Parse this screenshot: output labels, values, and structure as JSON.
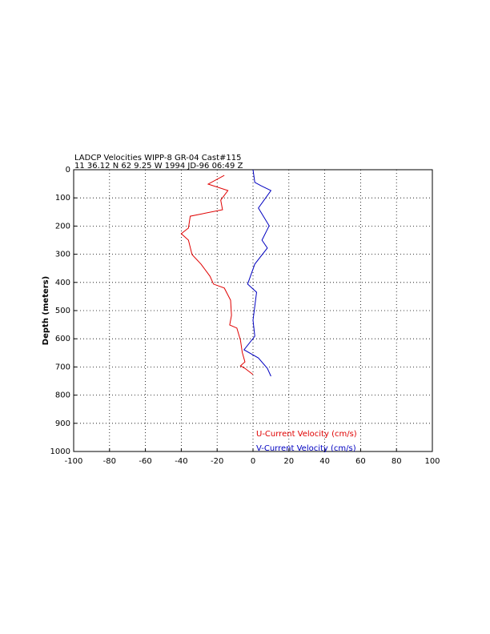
{
  "chart_data": {
    "type": "line",
    "title": "LADCP Velocities WIPP-8 GR-04 Cast#115",
    "subtitle": "11 36.12 N  62  9.25 W  1994 JD-96 06:49 Z",
    "y_label": "Depth (meters)",
    "xlim": [
      -100,
      100
    ],
    "xticks": [
      -100,
      -80,
      -60,
      -40,
      -20,
      0,
      20,
      40,
      60,
      80,
      100
    ],
    "ylim": [
      0,
      1000
    ],
    "yticks": [
      0,
      100,
      200,
      300,
      400,
      500,
      600,
      700,
      800,
      900,
      1000
    ],
    "y_inverted": true,
    "grid": true,
    "series": [
      {
        "name": "U-Current Velocity (cm/s)",
        "color": "#e00000",
        "depth": [
          20,
          51,
          74,
          108,
          142,
          165,
          207,
          227,
          250,
          301,
          335,
          378,
          406,
          420,
          463,
          517,
          551,
          562,
          605,
          648,
          682,
          696,
          705,
          727
        ],
        "values": [
          -16,
          -25,
          -14,
          -18,
          -17,
          -35,
          -36,
          -40,
          -36,
          -34,
          -29,
          -24,
          -22,
          -16,
          -12.5,
          -12,
          -13,
          -9,
          -7,
          -6,
          -4.5,
          -7,
          -4.5,
          0
        ]
      },
      {
        "name": "V-Current Velocity (cm/s)",
        "color": "#0000c0",
        "depth": [
          0,
          45,
          57,
          74,
          136,
          199,
          250,
          278,
          335,
          406,
          435,
          534,
          591,
          639,
          668,
          705,
          733
        ],
        "values": [
          0,
          1,
          4.5,
          10,
          3,
          9,
          5,
          8,
          1,
          -3,
          2,
          0,
          1,
          -5,
          3,
          8,
          10
        ]
      }
    ]
  }
}
